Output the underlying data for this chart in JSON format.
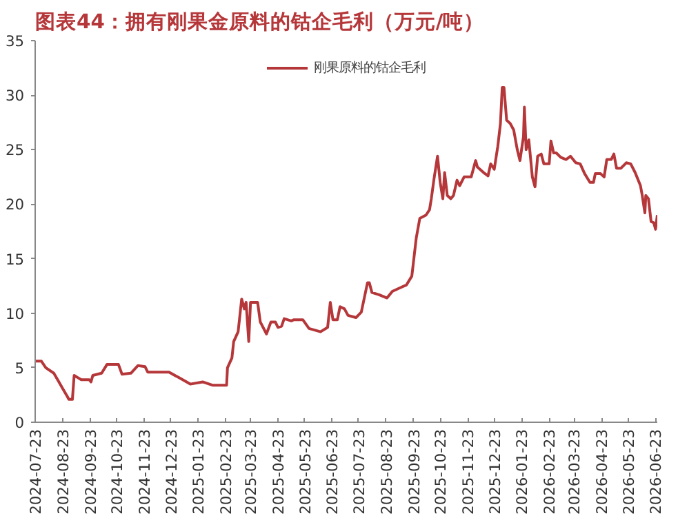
{
  "chart_data": {
    "type": "line",
    "title": "图表44：拥有刚果金原料的钴企毛利（万元/吨）",
    "legend": "top",
    "grid": false,
    "marker": "none",
    "line_style": "solid",
    "xlim": [
      "2024-07-23",
      "2026-06-25"
    ],
    "xticks": [
      "2024-07-23",
      "2024-08-23",
      "2024-09-23",
      "2024-10-23",
      "2024-11-23",
      "2024-12-23",
      "2025-01-23",
      "2025-02-23",
      "2025-03-23",
      "2025-04-23",
      "2025-05-23",
      "2025-06-23",
      "2025-07-23",
      "2025-08-23",
      "2025-09-23",
      "2025-10-23",
      "2025-11-23",
      "2025-12-23",
      "2026-01-23",
      "2026-02-23",
      "2026-03-23",
      "2026-04-23",
      "2026-05-23",
      "2026-06-23"
    ],
    "ylim": [
      0,
      35
    ],
    "yticks": [
      0,
      5,
      10,
      15,
      20,
      25,
      30,
      35
    ],
    "x": [
      "2024-07-23",
      "2024-07-30",
      "2024-08-04",
      "2024-08-13",
      "2024-08-18",
      "2024-08-23",
      "2024-08-28",
      "2024-08-30",
      "2024-09-03",
      "2024-09-05",
      "2024-09-09",
      "2024-09-13",
      "2024-09-22",
      "2024-09-24",
      "2024-09-26",
      "2024-10-06",
      "2024-10-12",
      "2024-10-25",
      "2024-10-29",
      "2024-11-08",
      "2024-11-16",
      "2024-11-24",
      "2024-11-27",
      "2024-12-21",
      "2025-01-01",
      "2025-01-14",
      "2025-01-28",
      "2025-02-08",
      "2025-02-24",
      "2025-02-25",
      "2025-03-02",
      "2025-03-04",
      "2025-03-09",
      "2025-03-13",
      "2025-03-16",
      "2025-03-18",
      "2025-03-21",
      "2025-03-23",
      "2025-03-31",
      "2025-04-03",
      "2025-04-10",
      "2025-04-15",
      "2025-04-20",
      "2025-04-23",
      "2025-04-27",
      "2025-04-30",
      "2025-05-08",
      "2025-05-11",
      "2025-05-21",
      "2025-05-28",
      "2025-06-10",
      "2025-06-18",
      "2025-06-21",
      "2025-06-24",
      "2025-06-29",
      "2025-07-02",
      "2025-07-07",
      "2025-07-11",
      "2025-07-20",
      "2025-07-26",
      "2025-08-02",
      "2025-08-04",
      "2025-08-07",
      "2025-08-15",
      "2025-08-24",
      "2025-08-30",
      "2025-09-07",
      "2025-09-15",
      "2025-09-21",
      "2025-09-26",
      "2025-09-30",
      "2025-10-07",
      "2025-10-11",
      "2025-10-13",
      "2025-10-16",
      "2025-10-20",
      "2025-10-23",
      "2025-10-26",
      "2025-10-28",
      "2025-10-31",
      "2025-11-04",
      "2025-11-07",
      "2025-11-11",
      "2025-11-14",
      "2025-11-19",
      "2025-11-27",
      "2025-12-02",
      "2025-12-04",
      "2025-12-11",
      "2025-12-16",
      "2025-12-19",
      "2025-12-23",
      "2025-12-27",
      "2025-12-30",
      "2026-01-01",
      "2026-01-03",
      "2026-01-06",
      "2026-01-10",
      "2026-01-14",
      "2026-01-18",
      "2026-01-21",
      "2026-01-25",
      "2026-01-26",
      "2026-01-28",
      "2026-01-31",
      "2026-02-04",
      "2026-02-07",
      "2026-02-10",
      "2026-02-14",
      "2026-02-17",
      "2026-02-23",
      "2026-02-25",
      "2026-02-28",
      "2026-03-03",
      "2026-03-08",
      "2026-03-14",
      "2026-03-19",
      "2026-03-25",
      "2026-03-30",
      "2026-04-04",
      "2026-04-10",
      "2026-04-14",
      "2026-04-16",
      "2026-04-22",
      "2026-04-26",
      "2026-04-29",
      "2026-05-04",
      "2026-05-07",
      "2026-05-10",
      "2026-05-15",
      "2026-05-21",
      "2026-05-26",
      "2026-05-31",
      "2026-06-06",
      "2026-06-08",
      "2026-06-11",
      "2026-06-12",
      "2026-06-15",
      "2026-06-18",
      "2026-06-21",
      "2026-06-23",
      "2026-06-25"
    ],
    "series": [
      {
        "name": "刚果原料的钴企毛利",
        "color": "#b5373a",
        "values": [
          5.6,
          5.6,
          5.0,
          4.5,
          3.8,
          3.1,
          2.4,
          2.1,
          2.1,
          4.3,
          4.1,
          3.9,
          3.9,
          3.7,
          4.3,
          4.5,
          5.3,
          5.3,
          4.4,
          4.5,
          5.2,
          5.1,
          4.6,
          4.6,
          4.1,
          3.5,
          3.7,
          3.4,
          3.4,
          5.0,
          5.9,
          7.4,
          8.3,
          11.3,
          10.4,
          11.0,
          7.4,
          11.0,
          11.0,
          9.2,
          8.1,
          9.2,
          9.2,
          8.7,
          8.8,
          9.5,
          9.3,
          9.4,
          9.4,
          8.6,
          8.3,
          8.7,
          11.0,
          9.4,
          9.4,
          10.6,
          10.4,
          9.8,
          9.6,
          10.1,
          12.8,
          12.8,
          11.9,
          11.7,
          11.4,
          12.0,
          12.3,
          12.6,
          13.4,
          16.9,
          18.7,
          19.0,
          19.5,
          20.5,
          22.3,
          24.4,
          22.0,
          20.5,
          22.9,
          20.8,
          20.5,
          20.8,
          22.2,
          21.7,
          22.5,
          22.5,
          24.0,
          23.4,
          22.9,
          22.6,
          23.7,
          23.2,
          25.3,
          27.4,
          30.7,
          30.7,
          27.7,
          27.4,
          26.8,
          25.0,
          24.0,
          26.2,
          28.9,
          25.0,
          25.9,
          22.5,
          21.6,
          24.4,
          24.6,
          23.7,
          23.7,
          25.8,
          24.7,
          24.7,
          24.3,
          24.1,
          24.4,
          23.8,
          23.7,
          22.8,
          22.0,
          22.0,
          22.8,
          22.8,
          22.5,
          24.1,
          24.1,
          24.6,
          23.3,
          23.3,
          23.8,
          23.7,
          22.9,
          21.7,
          20.8,
          19.2,
          20.8,
          20.5,
          18.4,
          18.3,
          17.7,
          19.0
        ]
      }
    ]
  }
}
